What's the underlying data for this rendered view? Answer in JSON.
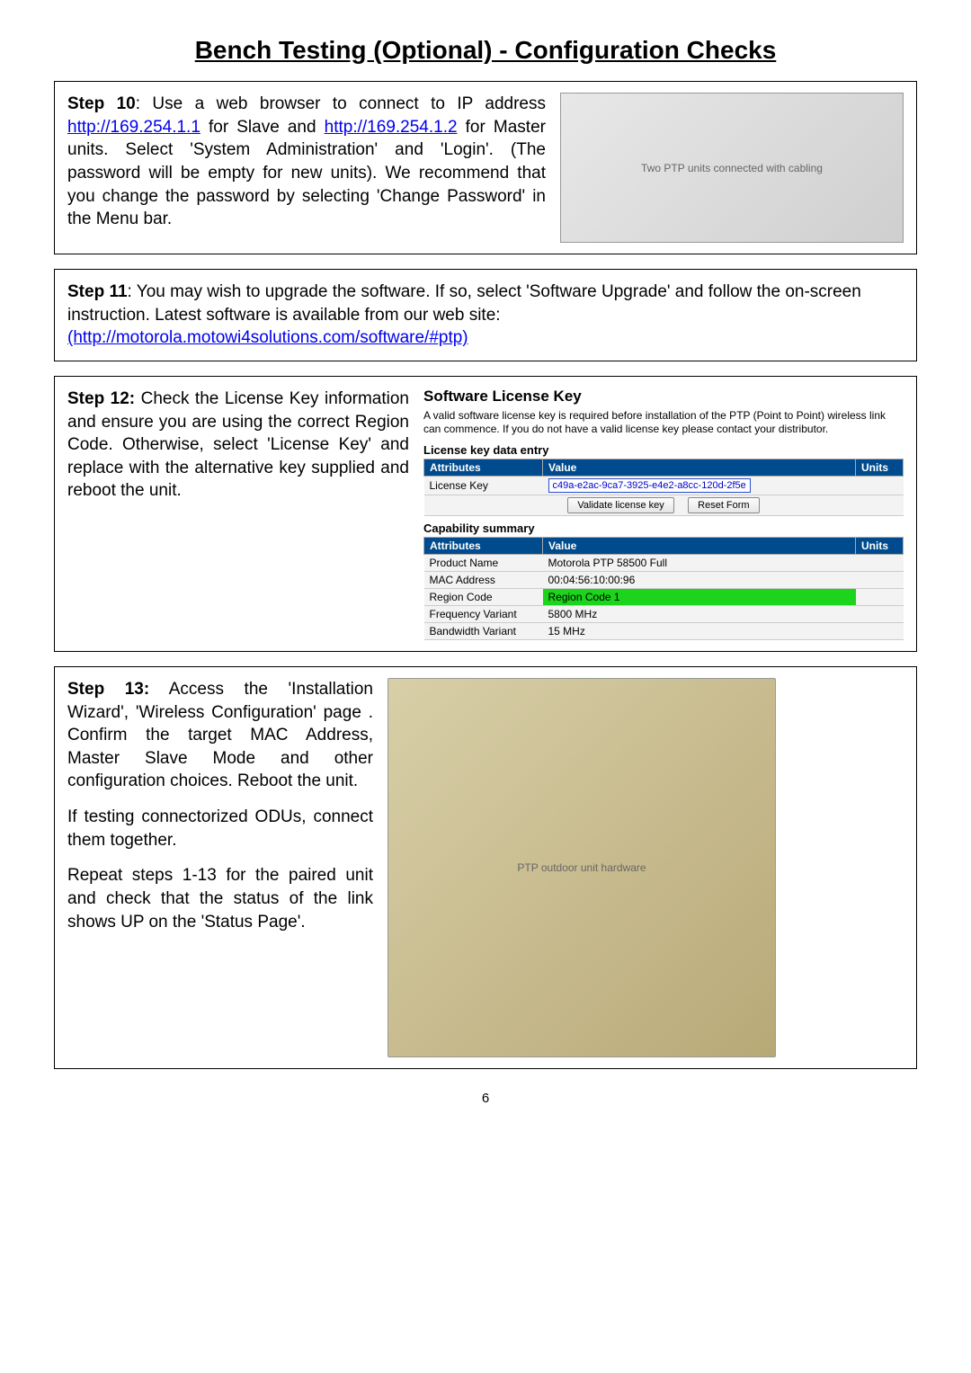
{
  "title": "Bench Testing (Optional)  - Configuration Checks",
  "step10": {
    "label": "Step 10",
    "text_before_link1": ": Use a web browser to connect to IP address ",
    "link1": "http://169.254.1.1",
    "text_mid": " for Slave and ",
    "link2": "http://169.254.1.2",
    "text_after": " for Master units. Select 'System Administration' and 'Login'. (The password will be empty for new units). We recommend that you change the password by selecting 'Change Password' in the Menu bar.",
    "img_alt": "Two PTP units connected with cabling"
  },
  "step11": {
    "label": "Step 11",
    "text_before_link": ": You may wish to upgrade the software. If so, select 'Software Upgrade' and follow the on-screen instruction. Latest software is available from our web site:",
    "link": "(http://motorola.motowi4solutions.com/software/#ptp)"
  },
  "step12": {
    "label": "Step 12:",
    "text": " Check the License Key information and ensure you are using the correct Region Code. Otherwise, select 'License Key' and replace with the alternative key supplied and reboot the unit.",
    "panel": {
      "title": "Software License Key",
      "desc": "A valid software license key is required before installation of the PTP (Point to Point) wireless link can commence. If you do not have a valid license key please contact your distributor.",
      "entry_caption": "License key data entry",
      "headers": {
        "attr": "Attributes",
        "val": "Value",
        "units": "Units"
      },
      "license_row_attr": "License Key",
      "license_value": "c49a-e2ac-9ca7-3925-e4e2-a8cc-120d-2f5e",
      "btn_validate": "Validate license key",
      "btn_reset": "Reset Form",
      "cap_caption": "Capability summary",
      "rows": [
        {
          "attr": "Product Name",
          "val": "Motorola PTP 58500 Full",
          "hl": false
        },
        {
          "attr": "MAC Address",
          "val": "00:04:56:10:00:96",
          "hl": false
        },
        {
          "attr": "Region Code",
          "val": "Region Code 1",
          "hl": true
        },
        {
          "attr": "Frequency Variant",
          "val": "5800 MHz",
          "hl": false
        },
        {
          "attr": "Bandwidth Variant",
          "val": "15 MHz",
          "hl": false
        }
      ]
    }
  },
  "step13": {
    "label": "Step 13:",
    "p1": " Access the 'Installation Wizard', 'Wireless Configuration' page . Confirm the target MAC Address, Master Slave Mode and other configuration choices. Reboot the unit.",
    "p2": "If testing connectorized ODUs, connect them together.",
    "p3": "Repeat steps 1-13 for the paired unit and check that the status of the link shows UP on the 'Status Page'.",
    "img_alt": "PTP outdoor unit hardware"
  },
  "page_number": "6"
}
